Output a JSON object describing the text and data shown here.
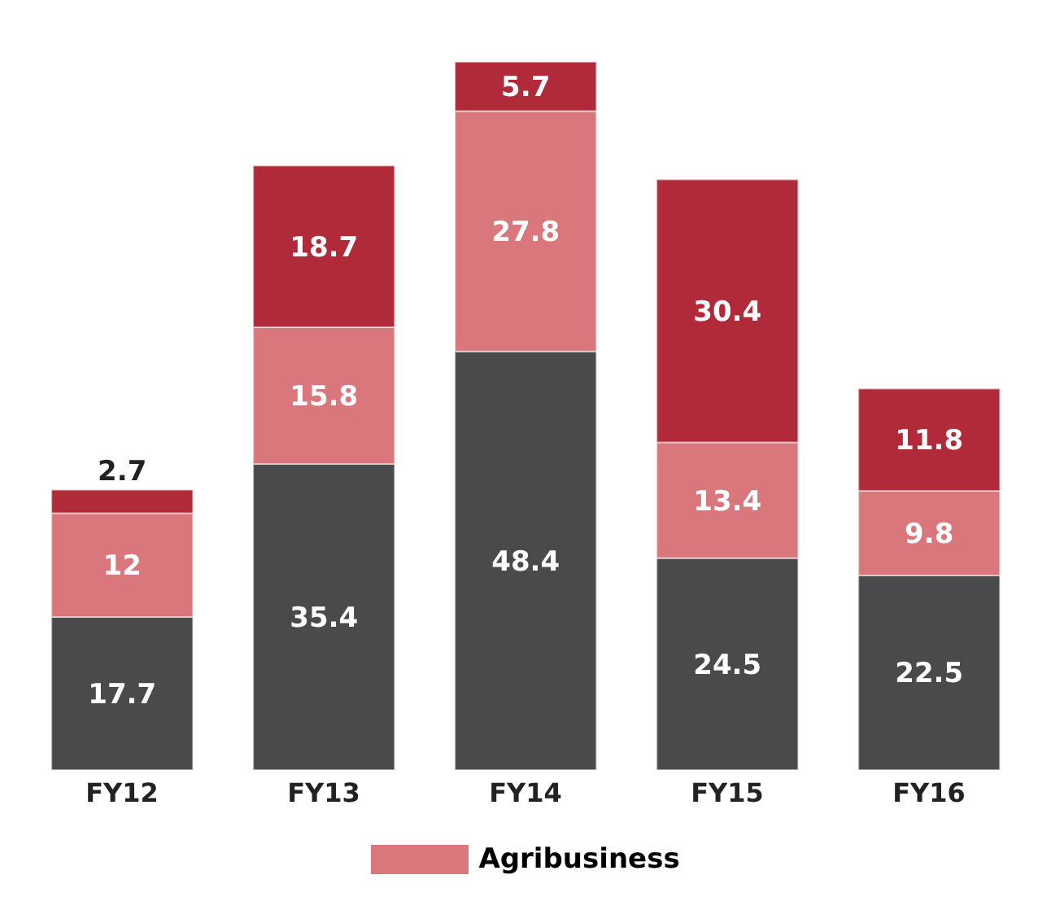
{
  "chart_data": {
    "type": "bar",
    "stacked": true,
    "data_labels": true,
    "legend": "bottom",
    "grid": false,
    "categories": [
      "FY12",
      "FY13",
      "FY14",
      "FY15",
      "FY16"
    ],
    "series": [
      {
        "color": "#4a4a4c",
        "values": [
          17.7,
          35.4,
          48.4,
          24.5,
          22.5
        ]
      },
      {
        "name": "Agribusiness",
        "color": "#d9777c",
        "values": [
          12,
          15.8,
          27.8,
          13.4,
          9.8
        ]
      },
      {
        "color": "#b02a3a",
        "values": [
          2.7,
          18.7,
          5.7,
          30.4,
          11.8
        ]
      }
    ]
  }
}
